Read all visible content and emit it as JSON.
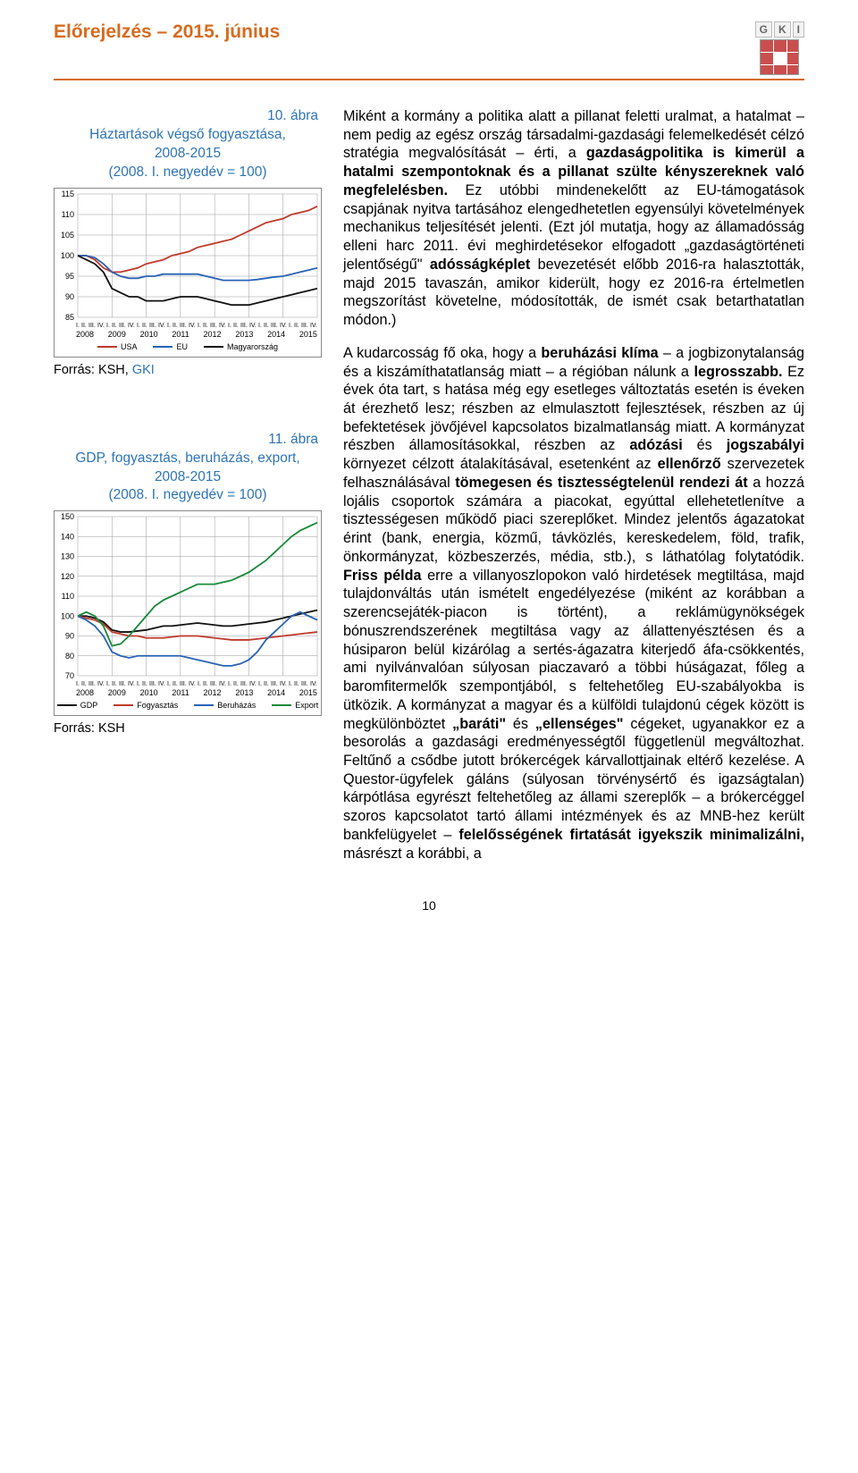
{
  "header": {
    "title": "Előrejelzés – 2015. június",
    "logo_letters": [
      "G",
      "K",
      "I"
    ]
  },
  "figure1": {
    "number_label": "10. ábra",
    "title_l1": "Háztartások végső fogyasztása,",
    "title_l2": "2008-2015",
    "title_l3": "(2008. I. negyedév = 100)",
    "source_prefix": "Forrás: KSH, ",
    "source_gki": "GKI",
    "type": "line",
    "ylim": [
      85,
      115
    ],
    "ytick_step": 5,
    "yticks": [
      115,
      110,
      105,
      100,
      95,
      90,
      85
    ],
    "years": [
      "2008",
      "2009",
      "2010",
      "2011",
      "2012",
      "2013",
      "2014",
      "2015"
    ],
    "quarters_pattern": "I. II. III. IV.",
    "background_color": "#ffffff",
    "grid_color": "#999999",
    "series": [
      {
        "name": "USA",
        "color": "#c0392b",
        "width": 1.8,
        "values": [
          100,
          100,
          99,
          97,
          96,
          96,
          96.5,
          97,
          98,
          98.5,
          99,
          100,
          100.5,
          101,
          102,
          102.5,
          103,
          103.5,
          104,
          105,
          106,
          107,
          108,
          108.5,
          109,
          110,
          110.5,
          111,
          112
        ]
      },
      {
        "name": "EU",
        "color": "#2962b5",
        "width": 1.8,
        "values": [
          100,
          100,
          99.5,
          98,
          96,
          95,
          94.5,
          94.5,
          95,
          95,
          95.5,
          95.5,
          95.5,
          95.5,
          95.5,
          95,
          94.5,
          94,
          94,
          94,
          94,
          94.2,
          94.5,
          94.8,
          95,
          95.5,
          96,
          96.5,
          97
        ]
      },
      {
        "name": "Magyarország",
        "color": "#111111",
        "width": 1.8,
        "values": [
          100,
          99,
          98,
          96,
          92,
          91,
          90,
          90,
          89,
          89,
          89,
          89.5,
          90,
          90,
          90,
          89.5,
          89,
          88.5,
          88,
          88,
          88,
          88.5,
          89,
          89.5,
          90,
          90.5,
          91,
          91.5,
          92
        ]
      }
    ]
  },
  "figure2": {
    "number_label": "11. ábra",
    "title_l1": "GDP, fogyasztás, beruházás, export,",
    "title_l2": "2008-2015",
    "title_l3": "(2008. I. negyedév = 100)",
    "source": "Forrás: KSH",
    "type": "line",
    "ylim": [
      70,
      150
    ],
    "ytick_step": 10,
    "yticks": [
      150,
      140,
      130,
      120,
      110,
      100,
      90,
      80,
      70
    ],
    "years": [
      "2008",
      "2009",
      "2010",
      "2011",
      "2012",
      "2013",
      "2014",
      "2015"
    ],
    "quarters_pattern": "I. II. III. IV.",
    "background_color": "#ffffff",
    "grid_color": "#999999",
    "series": [
      {
        "name": "GDP",
        "color": "#111111",
        "width": 1.8,
        "values": [
          100,
          100,
          99,
          97,
          93,
          92,
          92,
          92.5,
          93,
          94,
          95,
          95,
          95.5,
          96,
          96.5,
          96,
          95.5,
          95,
          95,
          95.5,
          96,
          96.5,
          97,
          98,
          99,
          100,
          101,
          102,
          103
        ]
      },
      {
        "name": "Fogyasztás",
        "color": "#c0392b",
        "width": 1.8,
        "values": [
          100,
          99,
          98,
          96,
          92,
          91,
          90,
          90,
          89,
          89,
          89,
          89.5,
          90,
          90,
          90,
          89.5,
          89,
          88.5,
          88,
          88,
          88,
          88.5,
          89,
          89.5,
          90,
          90.5,
          91,
          91.5,
          92
        ]
      },
      {
        "name": "Beruházás",
        "color": "#2962b5",
        "width": 1.8,
        "values": [
          100,
          98,
          95,
          90,
          82,
          80,
          79,
          80,
          80,
          80,
          80,
          80,
          80,
          79,
          78,
          77,
          76,
          75,
          75,
          76,
          78,
          82,
          88,
          92,
          96,
          100,
          102,
          100,
          98
        ]
      },
      {
        "name": "Export",
        "color": "#1a8a3a",
        "width": 1.8,
        "values": [
          100,
          102,
          100,
          95,
          85,
          86,
          90,
          95,
          100,
          105,
          108,
          110,
          112,
          114,
          116,
          116,
          116,
          117,
          118,
          120,
          122,
          125,
          128,
          132,
          136,
          140,
          143,
          145,
          147
        ]
      }
    ]
  },
  "body": {
    "p1_a": "Miként a kormány a politika alatt a pillanat feletti uralmat, a hatalmat – nem pedig az egész ország társadalmi-gazdasági felemelkedését célzó stratégia megvalósítását – érti, a ",
    "p1_b1": "gazdaságpolitika is kimerül a hatalmi szempontoknak és a pillanat szülte kényszereknek való megfelelésben.",
    "p1_c": " Ez utóbbi mindenekelőtt az EU-támogatások csapjának nyitva tartásához elengedhetetlen egyensúlyi követelmények mechanikus teljesítését jelenti. (Ezt jól mutatja, hogy az államadósság elleni harc 2011. évi meghirdetésekor elfogadott „gazdaságtörténeti jelentőségű\" ",
    "p1_b2": "adósságképlet",
    "p1_d": " bevezetését előbb 2016-ra halasztották, majd 2015 tavaszán, amikor kiderült, hogy ez 2016-ra értelmetlen megszorítást követelne, módosították, de ismét csak betarthatatlan módon.)",
    "p2_a": "A kudarcosság fő oka, hogy a ",
    "p2_b1": "beruházási klíma",
    "p2_c": " – a jogbizonytalanság és a kiszámíthatatlanság miatt – a régióban nálunk a ",
    "p2_b2": "legrosszabb.",
    "p2_d": " Ez évek óta tart, s hatása még egy esetleges változtatás esetén is éveken át érezhető lesz; részben az elmulasztott fejlesztések, részben az új befektetések jövőjével kapcsolatos bizalmatlanság miatt. A kormányzat részben államosításokkal, részben az ",
    "p2_b3": "adózási",
    "p2_e": " és ",
    "p2_b4": "jogszabályi",
    "p2_f": " környezet célzott átalakításával, esetenként az ",
    "p2_b5": "ellenőrző",
    "p2_g": " szervezetek felhasználásával ",
    "p2_b6": "tömegesen és tisztességtelenül rendezi át",
    "p2_h": " a hozzá lojális csoportok számára a piacokat, egyúttal ellehetetlenítve a tisztességesen működő piaci szereplőket. Mindez jelentős ágazatokat érint (bank, energia, közmű, távközlés, kereskedelem, föld, trafik, önkormányzat, közbeszerzés, média, stb.), s láthatólag folytatódik. ",
    "p2_b7": "Friss példa",
    "p2_i": " erre a villanyoszlopokon való hirdetések megtiltása, majd tulajdonváltás után ismételt engedélyezése (miként az korábban a szerencsejáték-piacon is történt), a reklámügynökségek bónuszrendszerének megtiltása vagy az állattenyésztésen és a húsiparon belül kizárólag a sertés-ágazatra kiterjedő áfa-csökkentés, ami nyilvánvalóan súlyosan piaczavaró a többi húságazat, főleg a baromfitermelők szempontjából, s feltehetőleg EU-szabályokba is ütközik. A kormányzat a magyar és a külföldi tulajdonú cégek között is megkülönböztet ",
    "p2_b8": "„baráti\"",
    "p2_j": " és ",
    "p2_b9": "„ellenséges\"",
    "p2_k": " cégeket, ugyanakkor ez a besorolás a gazdasági eredményességtől függetlenül megváltozhat. Feltűnő a csődbe jutott brókercégek kárvallottjainak eltérő kezelése. A Questor-ügyfelek gáláns (súlyosan törvénysértő és igazságtalan) kárpótlása egyrészt feltehetőleg az állami szereplők – a brókercéggel szoros kapcsolatot tartó állami intézmények és az MNB-hez került bankfelügyelet – ",
    "p2_b10": "felelősségének firtatását igyekszik minimalizálni,",
    "p2_l": " másrészt a korábbi, a"
  },
  "page_number": "10"
}
